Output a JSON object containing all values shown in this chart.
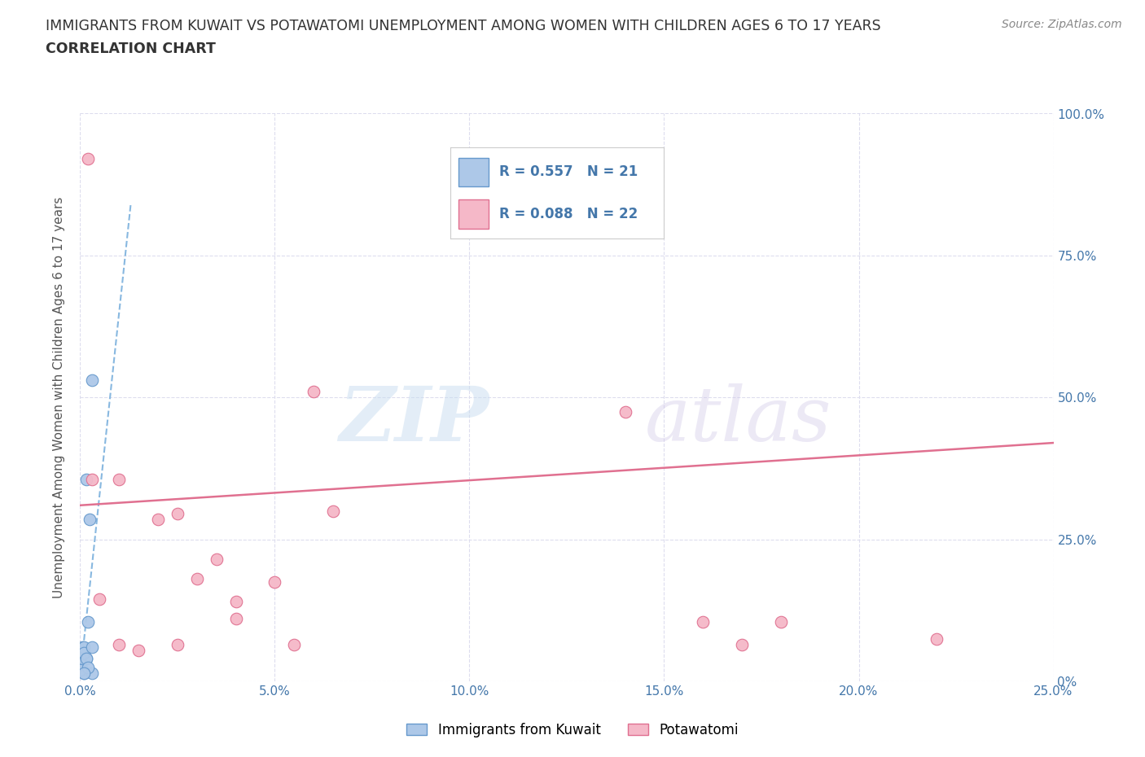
{
  "title_line1": "IMMIGRANTS FROM KUWAIT VS POTAWATOMI UNEMPLOYMENT AMONG WOMEN WITH CHILDREN AGES 6 TO 17 YEARS",
  "title_line2": "CORRELATION CHART",
  "source_text": "Source: ZipAtlas.com",
  "xlabel": "Immigrants from Kuwait",
  "ylabel": "Unemployment Among Women with Children Ages 6 to 17 years",
  "watermark_zip": "ZIP",
  "watermark_atlas": "atlas",
  "xlim": [
    0.0,
    0.25
  ],
  "ylim": [
    0.0,
    1.0
  ],
  "xtick_vals": [
    0.0,
    0.05,
    0.1,
    0.15,
    0.2,
    0.25
  ],
  "xtick_labels": [
    "0.0%",
    "5.0%",
    "10.0%",
    "15.0%",
    "20.0%",
    "25.0%"
  ],
  "ytick_vals": [
    0.0,
    0.25,
    0.5,
    0.75,
    1.0
  ],
  "ytick_labels": [
    "0%",
    "25.0%",
    "50.0%",
    "75.0%",
    "100.0%"
  ],
  "blue_color": "#adc8e8",
  "blue_edge": "#6699cc",
  "pink_color": "#f5b8c8",
  "pink_edge": "#e07090",
  "blue_line_color": "#88b8e0",
  "pink_line_color": "#e07090",
  "R_blue": 0.557,
  "N_blue": 21,
  "R_pink": 0.088,
  "N_pink": 22,
  "blue_scatter_x": [
    0.0015,
    0.0025,
    0.0005,
    0.001,
    0.0,
    0.0005,
    0.001,
    0.0015,
    0.0,
    0.002,
    0.001,
    0.0,
    0.0,
    0.001,
    0.003,
    0.003,
    0.0015,
    0.0,
    0.003,
    0.002,
    0.001
  ],
  "blue_scatter_y": [
    0.355,
    0.285,
    0.06,
    0.04,
    0.03,
    0.02,
    0.06,
    0.04,
    0.04,
    0.105,
    0.05,
    0.03,
    0.02,
    0.015,
    0.53,
    0.015,
    0.04,
    0.02,
    0.06,
    0.025,
    0.015
  ],
  "pink_scatter_x": [
    0.002,
    0.01,
    0.02,
    0.03,
    0.04,
    0.05,
    0.035,
    0.025,
    0.06,
    0.065,
    0.14,
    0.16,
    0.17,
    0.18,
    0.22,
    0.003,
    0.005,
    0.01,
    0.015,
    0.025,
    0.04,
    0.055
  ],
  "pink_scatter_y": [
    0.92,
    0.355,
    0.285,
    0.18,
    0.14,
    0.175,
    0.215,
    0.295,
    0.51,
    0.3,
    0.475,
    0.105,
    0.065,
    0.105,
    0.075,
    0.355,
    0.145,
    0.065,
    0.055,
    0.065,
    0.11,
    0.065
  ],
  "pink_trend_x": [
    0.0,
    0.25
  ],
  "pink_trend_y": [
    0.31,
    0.42
  ],
  "blue_trend_x_start": 0.0,
  "blue_trend_x_end": 0.013,
  "grid_color": "#ddddee",
  "bg_color": "#ffffff",
  "title_color": "#333333",
  "axis_label_color": "#555555",
  "tick_color": "#4477aa",
  "source_color": "#888888"
}
